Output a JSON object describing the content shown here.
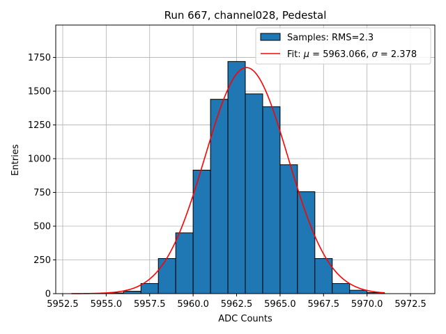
{
  "chart_data": {
    "type": "bar",
    "title": "Run 667, channel028, Pedestal",
    "xlabel": "ADC Counts",
    "ylabel": "Entries",
    "xlim": [
      5952.1,
      5973.9
    ],
    "ylim": [
      0,
      1990
    ],
    "xticks": [
      5952.5,
      5955.0,
      5957.5,
      5960.0,
      5962.5,
      5965.0,
      5967.5,
      5970.0,
      5972.5
    ],
    "xtick_labels": [
      "5952.5",
      "5955.0",
      "5957.5",
      "5960.0",
      "5962.5",
      "5965.0",
      "5967.5",
      "5970.0",
      "5972.5"
    ],
    "yticks": [
      0,
      250,
      500,
      750,
      1000,
      1250,
      1500,
      1750
    ],
    "ytick_labels": [
      "0",
      "250",
      "500",
      "750",
      "1000",
      "1250",
      "1500",
      "1750"
    ],
    "grid": true,
    "legend_position": "top-right",
    "bar_color": "#1f77b4",
    "bar_edge_color": "#000000",
    "fit_color": "#ff0000",
    "histogram": {
      "name": "Samples: RMS=2.3",
      "bin_edges": [
        5955,
        5956,
        5957,
        5958,
        5959,
        5960,
        5961,
        5962,
        5963,
        5964,
        5965,
        5966,
        5967,
        5968,
        5969,
        5970,
        5971
      ],
      "counts": [
        5,
        18,
        75,
        260,
        450,
        915,
        1440,
        1720,
        1480,
        1385,
        955,
        755,
        260,
        75,
        25,
        8
      ]
    },
    "fit": {
      "name_prefix": "Fit: ",
      "name_mu": "μ",
      "name_mid": " = 5963.066, ",
      "name_sigma": "σ",
      "name_suffix": " = 2.378",
      "mu": 5963.066,
      "sigma": 2.378,
      "amplitude": 1675,
      "x_range": [
        5953,
        5971
      ]
    }
  }
}
